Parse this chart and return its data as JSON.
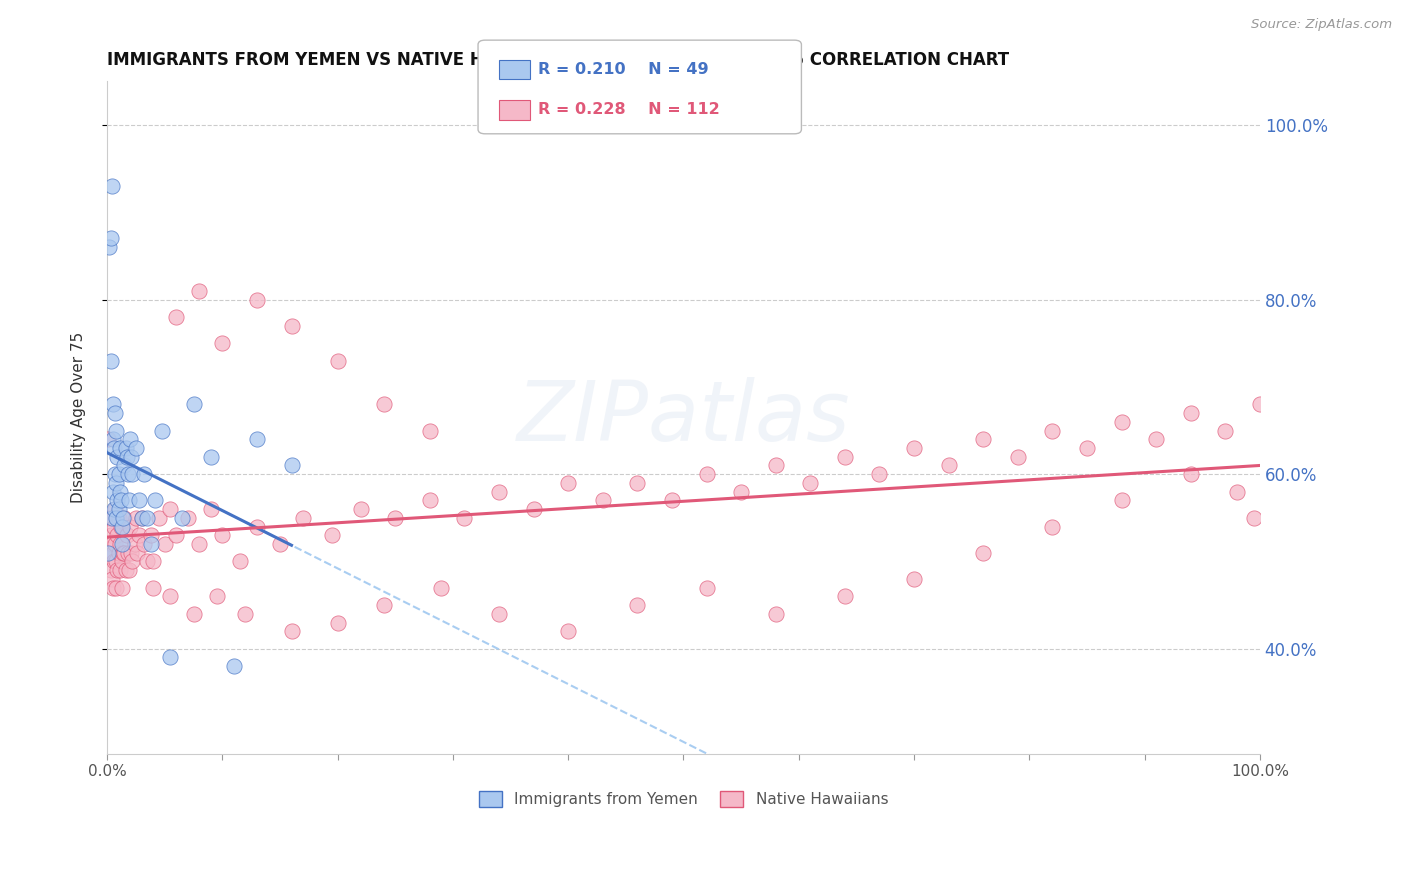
{
  "title": "IMMIGRANTS FROM YEMEN VS NATIVE HAWAIIAN DISABILITY AGE OVER 75 CORRELATION CHART",
  "source": "Source: ZipAtlas.com",
  "ylabel": "Disability Age Over 75",
  "grid_color": "#cccccc",
  "background_color": "#ffffff",
  "title_fontsize": 12,
  "series1_color": "#aac8ef",
  "series2_color": "#f5b8c8",
  "series1_line_color": "#4472c4",
  "series2_line_color": "#e05878",
  "series1_dash_color": "#a0c8f0",
  "legend_r1": "R = 0.210",
  "legend_n1": "N = 49",
  "legend_r2": "R = 0.228",
  "legend_n2": "N = 112",
  "legend_label1": "Immigrants from Yemen",
  "legend_label2": "Native Hawaiians",
  "watermark": "ZIPatlas",
  "xlim": [
    0.0,
    1.0
  ],
  "ylim": [
    0.28,
    1.05
  ],
  "yticks": [
    0.4,
    0.6,
    0.8,
    1.0
  ],
  "ytick_labels": [
    "40.0%",
    "60.0%",
    "80.0%",
    "100.0%"
  ],
  "xtick_positions": [
    0.0,
    1.0
  ],
  "xtick_labels": [
    "0.0%",
    "100.0%"
  ],
  "yemen_x": [
    0.001,
    0.002,
    0.003,
    0.003,
    0.004,
    0.004,
    0.005,
    0.005,
    0.005,
    0.006,
    0.006,
    0.007,
    0.007,
    0.008,
    0.008,
    0.008,
    0.009,
    0.009,
    0.01,
    0.01,
    0.011,
    0.011,
    0.012,
    0.013,
    0.013,
    0.014,
    0.015,
    0.016,
    0.017,
    0.018,
    0.019,
    0.02,
    0.021,
    0.022,
    0.025,
    0.028,
    0.03,
    0.032,
    0.035,
    0.038,
    0.042,
    0.048,
    0.055,
    0.065,
    0.075,
    0.09,
    0.11,
    0.13,
    0.16
  ],
  "yemen_y": [
    0.51,
    0.86,
    0.87,
    0.73,
    0.93,
    0.55,
    0.68,
    0.64,
    0.58,
    0.63,
    0.56,
    0.67,
    0.6,
    0.65,
    0.59,
    0.55,
    0.62,
    0.57,
    0.6,
    0.56,
    0.63,
    0.58,
    0.57,
    0.54,
    0.52,
    0.55,
    0.61,
    0.63,
    0.62,
    0.6,
    0.57,
    0.64,
    0.62,
    0.6,
    0.63,
    0.57,
    0.55,
    0.6,
    0.55,
    0.52,
    0.57,
    0.65,
    0.39,
    0.55,
    0.68,
    0.62,
    0.38,
    0.64,
    0.61
  ],
  "hawaii_x": [
    0.001,
    0.002,
    0.002,
    0.003,
    0.003,
    0.004,
    0.004,
    0.005,
    0.005,
    0.005,
    0.006,
    0.006,
    0.007,
    0.007,
    0.008,
    0.008,
    0.009,
    0.009,
    0.01,
    0.01,
    0.011,
    0.011,
    0.012,
    0.013,
    0.013,
    0.014,
    0.015,
    0.015,
    0.016,
    0.017,
    0.018,
    0.019,
    0.02,
    0.021,
    0.022,
    0.024,
    0.025,
    0.026,
    0.028,
    0.03,
    0.032,
    0.035,
    0.038,
    0.04,
    0.045,
    0.05,
    0.055,
    0.06,
    0.07,
    0.08,
    0.09,
    0.1,
    0.115,
    0.13,
    0.15,
    0.17,
    0.195,
    0.22,
    0.25,
    0.28,
    0.31,
    0.34,
    0.37,
    0.4,
    0.43,
    0.46,
    0.49,
    0.52,
    0.55,
    0.58,
    0.61,
    0.64,
    0.67,
    0.7,
    0.73,
    0.76,
    0.79,
    0.82,
    0.85,
    0.88,
    0.91,
    0.94,
    0.97,
    1.0,
    0.06,
    0.08,
    0.1,
    0.13,
    0.16,
    0.2,
    0.24,
    0.28,
    0.04,
    0.055,
    0.075,
    0.095,
    0.12,
    0.16,
    0.2,
    0.24,
    0.29,
    0.34,
    0.4,
    0.46,
    0.52,
    0.58,
    0.64,
    0.7,
    0.76,
    0.82,
    0.88,
    0.94,
    0.98,
    0.995
  ],
  "hawaii_y": [
    0.64,
    0.55,
    0.51,
    0.53,
    0.49,
    0.52,
    0.48,
    0.55,
    0.51,
    0.47,
    0.54,
    0.5,
    0.56,
    0.52,
    0.5,
    0.47,
    0.53,
    0.49,
    0.55,
    0.51,
    0.52,
    0.49,
    0.54,
    0.5,
    0.47,
    0.51,
    0.55,
    0.51,
    0.49,
    0.53,
    0.51,
    0.49,
    0.54,
    0.51,
    0.5,
    0.52,
    0.55,
    0.51,
    0.53,
    0.55,
    0.52,
    0.5,
    0.53,
    0.5,
    0.55,
    0.52,
    0.56,
    0.53,
    0.55,
    0.52,
    0.56,
    0.53,
    0.5,
    0.54,
    0.52,
    0.55,
    0.53,
    0.56,
    0.55,
    0.57,
    0.55,
    0.58,
    0.56,
    0.59,
    0.57,
    0.59,
    0.57,
    0.6,
    0.58,
    0.61,
    0.59,
    0.62,
    0.6,
    0.63,
    0.61,
    0.64,
    0.62,
    0.65,
    0.63,
    0.66,
    0.64,
    0.67,
    0.65,
    0.68,
    0.78,
    0.81,
    0.75,
    0.8,
    0.77,
    0.73,
    0.68,
    0.65,
    0.47,
    0.46,
    0.44,
    0.46,
    0.44,
    0.42,
    0.43,
    0.45,
    0.47,
    0.44,
    0.42,
    0.45,
    0.47,
    0.44,
    0.46,
    0.48,
    0.51,
    0.54,
    0.57,
    0.6,
    0.58,
    0.55
  ]
}
